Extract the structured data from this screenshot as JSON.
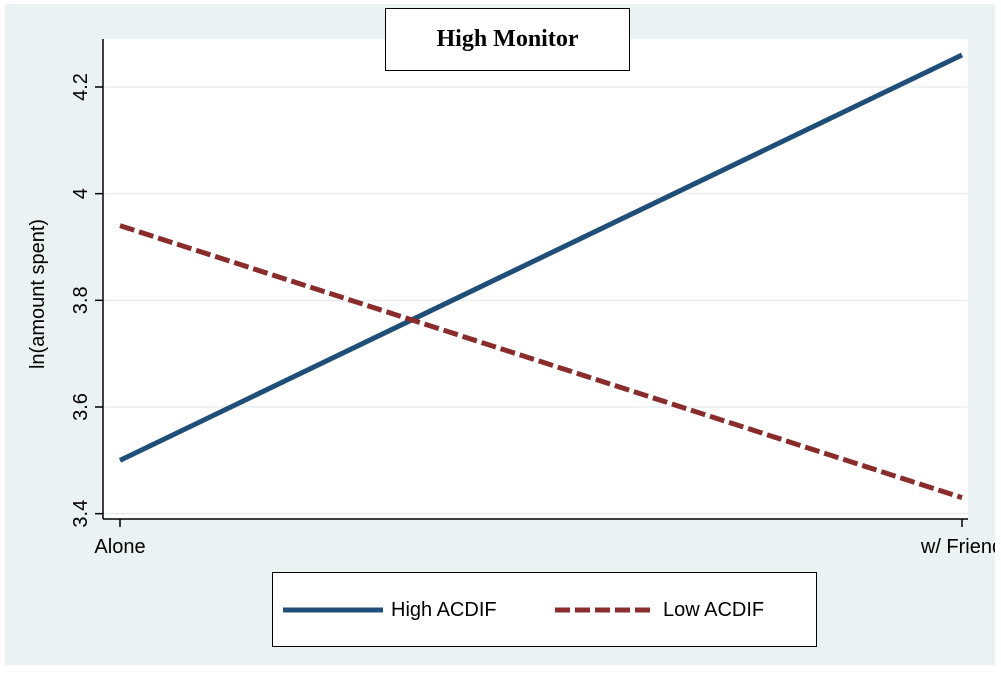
{
  "colors": {
    "background": "#eaf2f3",
    "plot_background": "#ffffff",
    "grid": "#e8eef0",
    "high_series": "#1f4e79",
    "low_series": "#8a2c2c"
  },
  "chart_data": {
    "type": "line",
    "title": "High Monitor",
    "xlabel": "",
    "ylabel": "ln(amount spent)",
    "categories": [
      "Alone",
      "w/ Friend"
    ],
    "ylim": [
      3.39,
      4.29
    ],
    "yticks": [
      3.4,
      3.6,
      3.8,
      4.0,
      4.2
    ],
    "ytick_labels": [
      "3.4",
      "3.6",
      "3.8",
      "4",
      "4.2"
    ],
    "grid": true,
    "legend_position": "bottom",
    "series": [
      {
        "name": "High ACDIF",
        "values": [
          3.5,
          4.26
        ],
        "style": "solid",
        "color": "#1f4e79"
      },
      {
        "name": "Low ACDIF",
        "values": [
          3.94,
          3.43
        ],
        "style": "dashed",
        "color": "#8a2c2c"
      }
    ]
  }
}
